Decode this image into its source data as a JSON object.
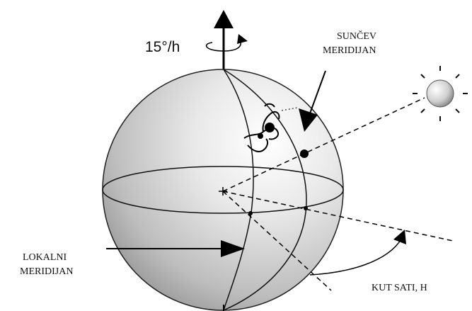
{
  "diagram": {
    "rotation_rate": "15°/h",
    "sun_meridian_label": [
      "SUNČEV",
      "MERIDIJAN"
    ],
    "local_meridian_label": [
      "LOKALNI",
      "MERIDIJAN"
    ],
    "hour_angle_label": "KUT SATI, H"
  }
}
